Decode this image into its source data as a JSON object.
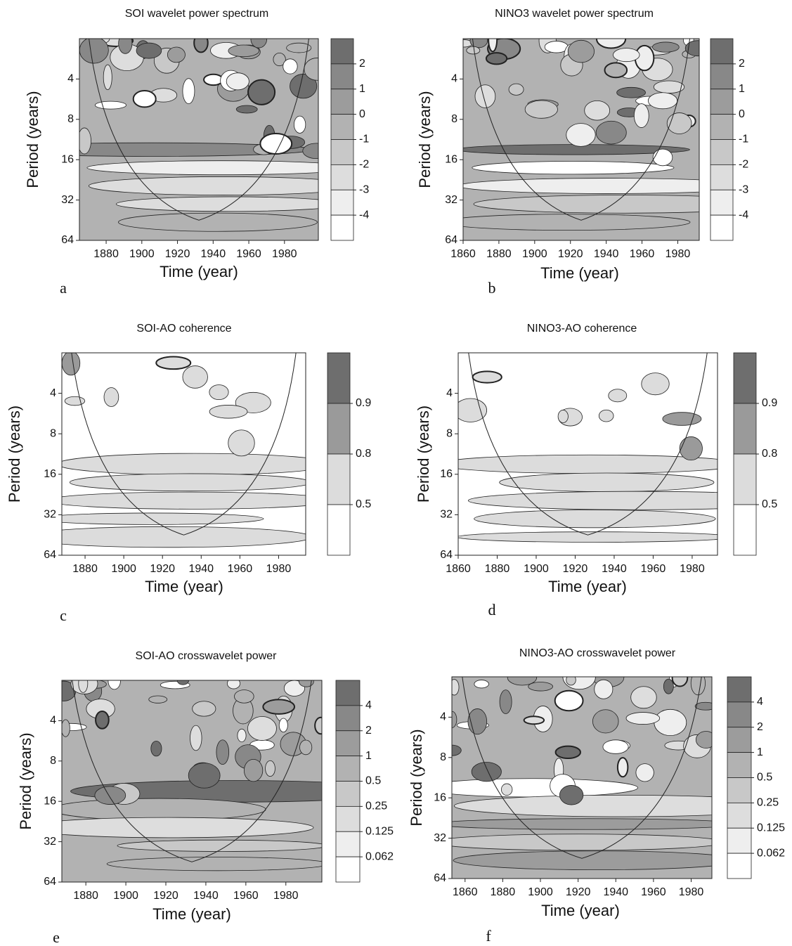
{
  "chart_data": [
    {
      "type": "contour",
      "panel_label": "a",
      "title": "SOI wavelet power spectrum",
      "xlabel": "Time (year)",
      "ylabel": "Period (years)",
      "xlim": [
        1865,
        1999
      ],
      "xticks": [
        1880,
        1900,
        1920,
        1940,
        1960,
        1980
      ],
      "ylim": [
        2,
        64
      ],
      "yticks": [
        4,
        8,
        16,
        32,
        64
      ],
      "ylog": true,
      "yinverted": true,
      "colorbar": {
        "levels": [
          2,
          1,
          0,
          -1,
          -2,
          -3,
          -4
        ],
        "colors": [
          "#6e6e6e",
          "#888888",
          "#9c9c9c",
          "#b2b2b2",
          "#c8c8c8",
          "#dddddd",
          "#eeeeee",
          "#ffffff"
        ]
      }
    },
    {
      "type": "contour",
      "panel_label": "b",
      "title": "NINO3 wavelet power spectrum",
      "xlabel": "Time (year)",
      "ylabel": "Period (years)",
      "xlim": [
        1860,
        1992
      ],
      "xticks": [
        1860,
        1880,
        1900,
        1920,
        1940,
        1960,
        1980
      ],
      "ylim": [
        2,
        64
      ],
      "yticks": [
        4,
        8,
        16,
        32,
        64
      ],
      "ylog": true,
      "yinverted": true,
      "colorbar": {
        "levels": [
          2,
          1,
          0,
          -1,
          -2,
          -3,
          -4
        ],
        "colors": [
          "#6e6e6e",
          "#888888",
          "#9c9c9c",
          "#b2b2b2",
          "#c8c8c8",
          "#dddddd",
          "#eeeeee",
          "#ffffff"
        ]
      }
    },
    {
      "type": "contour",
      "panel_label": "c",
      "title": "SOI-AO  coherence",
      "xlabel": "Time (year)",
      "ylabel": "Period (years)",
      "xlim": [
        1868,
        1994
      ],
      "xticks": [
        1880,
        1900,
        1920,
        1940,
        1960,
        1980
      ],
      "ylim": [
        2,
        64
      ],
      "yticks": [
        4,
        8,
        16,
        32,
        64
      ],
      "ylog": true,
      "yinverted": true,
      "colorbar": {
        "levels": [
          0.9,
          0.8,
          0.5
        ],
        "colors": [
          "#6e6e6e",
          "#9a9a9a",
          "#dcdcdc",
          "#ffffff"
        ]
      }
    },
    {
      "type": "contour",
      "panel_label": "d",
      "title": "NINO3-AO  coherence",
      "xlabel": "Time (year)",
      "ylabel": "Period (years)",
      "xlim": [
        1860,
        1993
      ],
      "xticks": [
        1860,
        1880,
        1900,
        1920,
        1940,
        1960,
        1980
      ],
      "ylim": [
        2,
        64
      ],
      "yticks": [
        4,
        8,
        16,
        32,
        64
      ],
      "ylog": true,
      "yinverted": true,
      "colorbar": {
        "levels": [
          0.9,
          0.8,
          0.5
        ],
        "colors": [
          "#6e6e6e",
          "#9a9a9a",
          "#dcdcdc",
          "#ffffff"
        ]
      }
    },
    {
      "type": "contour",
      "panel_label": "e",
      "title": "SOI-AO  crosswavelet power",
      "xlabel": "Time (year)",
      "ylabel": "Period (years)",
      "xlim": [
        1868,
        1998
      ],
      "xticks": [
        1880,
        1900,
        1920,
        1940,
        1960,
        1980
      ],
      "ylim": [
        2,
        64
      ],
      "yticks": [
        4,
        8,
        16,
        32,
        64
      ],
      "ylog": true,
      "yinverted": true,
      "colorbar": {
        "levels": [
          4,
          2,
          1,
          0.5,
          0.25,
          0.125,
          0.062
        ],
        "colors": [
          "#6e6e6e",
          "#888888",
          "#9c9c9c",
          "#b2b2b2",
          "#c8c8c8",
          "#dddddd",
          "#eeeeee",
          "#ffffff"
        ]
      }
    },
    {
      "type": "contour",
      "panel_label": "f",
      "title": "NINO3-AO  crosswavelet power",
      "xlabel": "Time (year)",
      "ylabel": "Period (years)",
      "xlim": [
        1853,
        1991
      ],
      "xticks": [
        1860,
        1880,
        1900,
        1920,
        1940,
        1960,
        1980
      ],
      "ylim": [
        2,
        64
      ],
      "yticks": [
        4,
        8,
        16,
        32,
        64
      ],
      "ylog": true,
      "yinverted": true,
      "colorbar": {
        "levels": [
          4,
          2,
          1,
          0.5,
          0.25,
          0.125,
          0.062
        ],
        "colors": [
          "#6e6e6e",
          "#888888",
          "#9c9c9c",
          "#b2b2b2",
          "#c8c8c8",
          "#dddddd",
          "#eeeeee",
          "#ffffff"
        ]
      }
    }
  ]
}
